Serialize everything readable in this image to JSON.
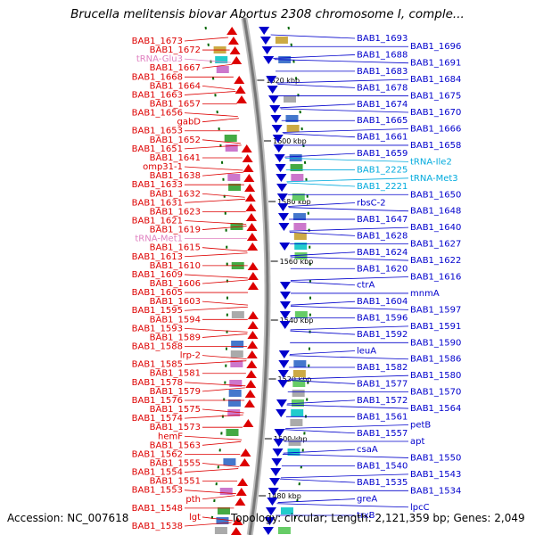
{
  "title": "Brucella melitensis biovar Abortus 2308 chromosome I, comple...",
  "footer": {
    "accession": "Accession: NC_007618",
    "summary": "Topology: circular; Length: 2,121,359 bp; Genes: 2,049"
  },
  "colors": {
    "reverse_strand": "#dd0000",
    "forward_strand": "#0000cc",
    "trna": "#e080c0",
    "trna_forward": "#00aadd",
    "backbone": "#999999",
    "tick": "#006600"
  },
  "scale_ticks": [
    "1620 kbp",
    "1600 kbp",
    "1580 kbp",
    "1560 kbp",
    "1540 kbp",
    "1520 kbp",
    "1500 kbp",
    "1480 kbp"
  ],
  "left_labels": [
    {
      "text": "BAB1_1673",
      "kind": "gene"
    },
    {
      "text": "BAB1_1672",
      "kind": "gene"
    },
    {
      "text": "tRNA-Glu3",
      "kind": "trna"
    },
    {
      "text": "BAB1_1667",
      "kind": "gene"
    },
    {
      "text": "BAB1_1668",
      "kind": "gene"
    },
    {
      "text": "BAB1_1664",
      "kind": "gene"
    },
    {
      "text": "BAB1_1663",
      "kind": "gene"
    },
    {
      "text": "BAB1_1657",
      "kind": "gene"
    },
    {
      "text": "BAB1_1656",
      "kind": "gene"
    },
    {
      "text": "gabD",
      "kind": "gene"
    },
    {
      "text": "BAB1_1653",
      "kind": "gene"
    },
    {
      "text": "BAB1_1652",
      "kind": "gene"
    },
    {
      "text": "BAB1_1651",
      "kind": "gene"
    },
    {
      "text": "BAB1_1641",
      "kind": "gene"
    },
    {
      "text": "omp31-1",
      "kind": "gene"
    },
    {
      "text": "BAB1_1638",
      "kind": "gene"
    },
    {
      "text": "BAB1_1633",
      "kind": "gene"
    },
    {
      "text": "BAB1_1632",
      "kind": "gene"
    },
    {
      "text": "BAB1_1631",
      "kind": "gene"
    },
    {
      "text": "BAB1_1623",
      "kind": "gene"
    },
    {
      "text": "BAB1_1621",
      "kind": "gene"
    },
    {
      "text": "BAB1_1619",
      "kind": "gene"
    },
    {
      "text": "tRNA-Met1",
      "kind": "trna"
    },
    {
      "text": "BAB1_1615",
      "kind": "gene"
    },
    {
      "text": "BAB1_1613",
      "kind": "gene"
    },
    {
      "text": "BAB1_1610",
      "kind": "gene"
    },
    {
      "text": "BAB1_1609",
      "kind": "gene"
    },
    {
      "text": "BAB1_1606",
      "kind": "gene"
    },
    {
      "text": "BAB1_1605",
      "kind": "gene"
    },
    {
      "text": "BAB1_1603",
      "kind": "gene"
    },
    {
      "text": "BAB1_1595",
      "kind": "gene"
    },
    {
      "text": "BAB1_1594",
      "kind": "gene"
    },
    {
      "text": "BAB1_1593",
      "kind": "gene"
    },
    {
      "text": "BAB1_1589",
      "kind": "gene"
    },
    {
      "text": "BAB1_1588",
      "kind": "gene"
    },
    {
      "text": "lrp-2",
      "kind": "gene"
    },
    {
      "text": "BAB1_1585",
      "kind": "gene"
    },
    {
      "text": "BAB1_1581",
      "kind": "gene"
    },
    {
      "text": "BAB1_1578",
      "kind": "gene"
    },
    {
      "text": "BAB1_1579",
      "kind": "gene"
    },
    {
      "text": "BAB1_1576",
      "kind": "gene"
    },
    {
      "text": "BAB1_1575",
      "kind": "gene"
    },
    {
      "text": "BAB1_1574",
      "kind": "gene"
    },
    {
      "text": "BAB1_1573",
      "kind": "gene"
    },
    {
      "text": "hemF",
      "kind": "gene"
    },
    {
      "text": "BAB1_1563",
      "kind": "gene"
    },
    {
      "text": "BAB1_1562",
      "kind": "gene"
    },
    {
      "text": "BAB1_1555",
      "kind": "gene"
    },
    {
      "text": "BAB1_1554",
      "kind": "gene"
    },
    {
      "text": "BAB1_1551",
      "kind": "gene"
    },
    {
      "text": "BAB1_1553",
      "kind": "gene"
    },
    {
      "text": "pth",
      "kind": "gene"
    },
    {
      "text": "BAB1_1548",
      "kind": "gene"
    },
    {
      "text": "lgt",
      "kind": "gene"
    },
    {
      "text": "BAB1_1538",
      "kind": "gene"
    }
  ],
  "right_labels": [
    {
      "text": "BAB1_1693",
      "kind": "gene"
    },
    {
      "text": "BAB1_1696",
      "kind": "gene"
    },
    {
      "text": "BAB1_1688",
      "kind": "gene"
    },
    {
      "text": "BAB1_1691",
      "kind": "gene"
    },
    {
      "text": "BAB1_1683",
      "kind": "gene"
    },
    {
      "text": "BAB1_1684",
      "kind": "gene"
    },
    {
      "text": "BAB1_1678",
      "kind": "gene"
    },
    {
      "text": "BAB1_1675",
      "kind": "gene"
    },
    {
      "text": "BAB1_1674",
      "kind": "gene"
    },
    {
      "text": "BAB1_1670",
      "kind": "gene"
    },
    {
      "text": "BAB1_1665",
      "kind": "gene"
    },
    {
      "text": "BAB1_1666",
      "kind": "gene"
    },
    {
      "text": "BAB1_1661",
      "kind": "gene"
    },
    {
      "text": "BAB1_1658",
      "kind": "gene"
    },
    {
      "text": "BAB1_1659",
      "kind": "gene"
    },
    {
      "text": "tRNA-Ile2",
      "kind": "trna"
    },
    {
      "text": "BAB1_2225",
      "kind": "trna"
    },
    {
      "text": "tRNA-Met3",
      "kind": "trna"
    },
    {
      "text": "BAB1_2221",
      "kind": "trna"
    },
    {
      "text": "BAB1_1650",
      "kind": "gene"
    },
    {
      "text": "rbsC-2",
      "kind": "gene"
    },
    {
      "text": "BAB1_1648",
      "kind": "gene"
    },
    {
      "text": "BAB1_1647",
      "kind": "gene"
    },
    {
      "text": "BAB1_1640",
      "kind": "gene"
    },
    {
      "text": "BAB1_1628",
      "kind": "gene"
    },
    {
      "text": "BAB1_1627",
      "kind": "gene"
    },
    {
      "text": "BAB1_1624",
      "kind": "gene"
    },
    {
      "text": "BAB1_1622",
      "kind": "gene"
    },
    {
      "text": "BAB1_1620",
      "kind": "gene"
    },
    {
      "text": "BAB1_1616",
      "kind": "gene"
    },
    {
      "text": "ctrA",
      "kind": "gene"
    },
    {
      "text": "mnmA",
      "kind": "gene"
    },
    {
      "text": "BAB1_1604",
      "kind": "gene"
    },
    {
      "text": "BAB1_1597",
      "kind": "gene"
    },
    {
      "text": "BAB1_1596",
      "kind": "gene"
    },
    {
      "text": "BAB1_1591",
      "kind": "gene"
    },
    {
      "text": "BAB1_1592",
      "kind": "gene"
    },
    {
      "text": "BAB1_1590",
      "kind": "gene"
    },
    {
      "text": "leuA",
      "kind": "gene"
    },
    {
      "text": "BAB1_1586",
      "kind": "gene"
    },
    {
      "text": "BAB1_1582",
      "kind": "gene"
    },
    {
      "text": "BAB1_1580",
      "kind": "gene"
    },
    {
      "text": "BAB1_1577",
      "kind": "gene"
    },
    {
      "text": "BAB1_1570",
      "kind": "gene"
    },
    {
      "text": "BAB1_1572",
      "kind": "gene"
    },
    {
      "text": "BAB1_1564",
      "kind": "gene"
    },
    {
      "text": "BAB1_1561",
      "kind": "gene"
    },
    {
      "text": "petB",
      "kind": "gene"
    },
    {
      "text": "BAB1_1557",
      "kind": "gene"
    },
    {
      "text": "apt",
      "kind": "gene"
    },
    {
      "text": "csaA",
      "kind": "gene"
    },
    {
      "text": "BAB1_1550",
      "kind": "gene"
    },
    {
      "text": "BAB1_1540",
      "kind": "gene"
    },
    {
      "text": "BAB1_1543",
      "kind": "gene"
    },
    {
      "text": "BAB1_1535",
      "kind": "gene"
    },
    {
      "text": "BAB1_1534",
      "kind": "gene"
    },
    {
      "text": "greA",
      "kind": "gene"
    },
    {
      "text": "lpcC",
      "kind": "gene"
    },
    {
      "text": "trxB",
      "kind": "gene"
    }
  ]
}
